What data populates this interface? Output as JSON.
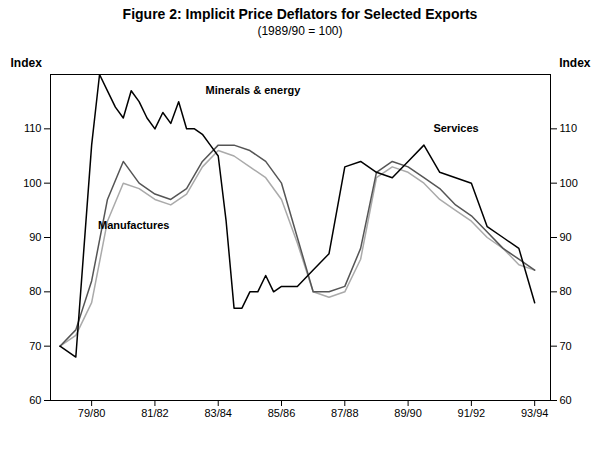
{
  "chart_data": {
    "type": "line",
    "title": "Figure 2: Implicit Price Deflators for Selected Exports",
    "subtitle": "(1989/90 = 100)",
    "ylabel": "Index",
    "y2label": "Index",
    "xlim": [
      -0.3,
      15.5
    ],
    "xticks": [
      {
        "value": 1,
        "label": "79/80"
      },
      {
        "value": 3,
        "label": "81/82"
      },
      {
        "value": 5,
        "label": "83/84"
      },
      {
        "value": 7,
        "label": "85/86"
      },
      {
        "value": 9,
        "label": "87/88"
      },
      {
        "value": 11,
        "label": "89/90"
      },
      {
        "value": 13,
        "label": "91/92"
      },
      {
        "value": 15,
        "label": "93/94"
      }
    ],
    "ylim": [
      60,
      120
    ],
    "yticks": [
      60,
      70,
      80,
      90,
      100,
      110
    ],
    "y2lim": [
      60,
      120
    ],
    "y2ticks": [
      60,
      70,
      80,
      90,
      100,
      110
    ],
    "grid": false,
    "series": [
      {
        "color": "#000000",
        "x": [
          0,
          0.5,
          1,
          1.25,
          1.5,
          1.75,
          2,
          2.25,
          2.5,
          2.75,
          3,
          3.25,
          3.5,
          3.75,
          4,
          4.25,
          4.5,
          4.75,
          5,
          5.25,
          5.5,
          5.75,
          6,
          6.25,
          6.5,
          6.75,
          7,
          7.5,
          8,
          8.5,
          9,
          9.5,
          10,
          10.5,
          11,
          11.5,
          12,
          12.5,
          13,
          13.5,
          14,
          14.5,
          15
        ],
        "values": [
          70,
          68,
          107,
          120,
          117,
          114,
          112,
          117,
          115,
          112,
          110,
          113,
          111,
          115,
          110,
          110,
          109,
          107,
          105,
          93,
          77,
          77,
          80,
          80,
          83,
          80,
          81,
          81,
          84,
          87,
          103,
          104,
          102,
          101,
          104,
          107,
          102,
          101,
          100,
          92,
          90,
          88,
          78
        ]
      },
      {
        "color": "#555555",
        "x": [
          0,
          0.5,
          1,
          1.5,
          2,
          2.5,
          3,
          3.5,
          4,
          4.5,
          5,
          5.5,
          6,
          6.5,
          7,
          7.5,
          8,
          8.5,
          9,
          9.5,
          10,
          10.5,
          11,
          11.5,
          12,
          12.5,
          13,
          13.5,
          14,
          14.5,
          15
        ],
        "values": [
          70,
          73,
          82,
          97,
          104,
          100,
          98,
          97,
          99,
          104,
          107,
          107,
          106,
          104,
          100,
          90,
          80,
          80,
          81,
          88,
          102,
          104,
          103,
          101,
          99,
          96,
          94,
          91,
          88,
          86,
          84
        ]
      },
      {
        "color": "#aaaaaa",
        "x": [
          0,
          0.5,
          1,
          1.5,
          2,
          2.5,
          3,
          3.5,
          4,
          4.5,
          5,
          5.5,
          6,
          6.5,
          7,
          7.5,
          8,
          8.5,
          9,
          9.5,
          10,
          10.5,
          11,
          11.5,
          12,
          12.5,
          13,
          13.5,
          14,
          14.5,
          15
        ],
        "values": [
          70,
          72,
          78,
          93,
          100,
          99,
          97,
          96,
          98,
          103,
          106,
          105,
          103,
          101,
          97,
          89,
          80,
          79,
          80,
          86,
          101,
          103,
          102,
          100,
          97,
          95,
          93,
          90,
          88,
          85,
          84
        ]
      }
    ],
    "annotations": [
      {
        "text": "Minerals & energy",
        "x": 4.6,
        "y": 116.5
      },
      {
        "text": "Manufactures",
        "x": 1.2,
        "y": 91.5
      },
      {
        "text": "Services",
        "x": 11.8,
        "y": 109.5
      }
    ]
  }
}
